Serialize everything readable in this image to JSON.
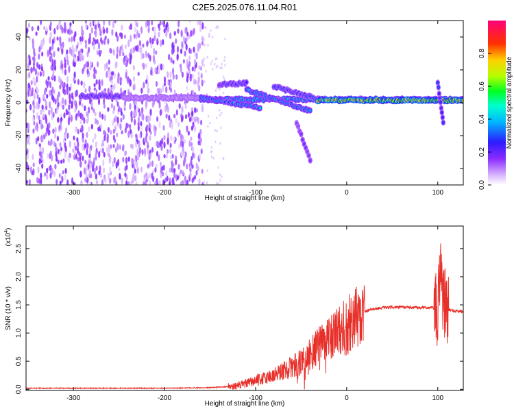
{
  "title": "C2E5.2025.076.11.04.R01",
  "colors": {
    "series": "#e8302a",
    "frame": "#000000",
    "colormap": [
      "#ffffff",
      "#a060ff",
      "#5a00e0",
      "#2d1bff",
      "#00c8ff",
      "#00ff60",
      "#c8ff00",
      "#ffb000",
      "#ff2000",
      "#ff007a"
    ]
  },
  "chart_data": [
    {
      "type": "heatmap",
      "title": "C2E5.2025.076.11.04.R01",
      "xlabel": "Height of straight line (km)",
      "ylabel": "Frequency (Hz)",
      "xlim": [
        -352,
        128
      ],
      "ylim": [
        -50,
        50
      ],
      "x_ticks": [
        -300,
        -200,
        -100,
        0,
        100
      ],
      "x_tick_labels": [
        "-300",
        "-200",
        "-100",
        "0",
        "100"
      ],
      "y_ticks": [
        -40,
        -20,
        0,
        20,
        40
      ],
      "y_tick_labels": [
        "-40",
        "-20",
        "0",
        "20",
        "40"
      ],
      "colorbar": {
        "label": "Normalized spectral amplitude",
        "range": [
          0,
          1
        ],
        "ticks": [
          0.0,
          0.2,
          0.4,
          0.6,
          0.8
        ],
        "tick_labels": [
          "0.0",
          "0.2",
          "0.4",
          "0.6",
          "0.8"
        ]
      },
      "features": [
        {
          "kind": "noise",
          "x": [
            -352,
            -158
          ],
          "y": [
            -50,
            50
          ],
          "amplitude": 0.15
        },
        {
          "kind": "line",
          "x": [
            -292,
            -245
          ],
          "y": [
            4,
            4
          ],
          "amplitude": 0.3
        },
        {
          "kind": "line",
          "x": [
            -245,
            -160
          ],
          "y": [
            3,
            3
          ],
          "amplitude": 0.12
        },
        {
          "kind": "line",
          "x": [
            -160,
            128
          ],
          "y": [
            2,
            2
          ],
          "amplitude": 0.5
        },
        {
          "kind": "line",
          "x": [
            -160,
            -95
          ],
          "y": [
            3,
            -3
          ],
          "amplitude": 0.45
        },
        {
          "kind": "line",
          "x": [
            -140,
            -110
          ],
          "y": [
            11,
            12
          ],
          "amplitude": 0.3
        },
        {
          "kind": "line",
          "x": [
            -110,
            -40
          ],
          "y": [
            8,
            -5
          ],
          "amplitude": 0.45
        },
        {
          "kind": "line",
          "x": [
            -80,
            -30
          ],
          "y": [
            10,
            2
          ],
          "amplitude": 0.35
        },
        {
          "kind": "line",
          "x": [
            -55,
            -40
          ],
          "y": [
            -12,
            -35
          ],
          "amplitude": 0.2
        },
        {
          "kind": "line",
          "x": [
            -32,
            128
          ],
          "y": [
            1.5,
            1.5
          ],
          "amplitude": 0.9
        },
        {
          "kind": "line",
          "x": [
            100,
            106
          ],
          "y": [
            12,
            -12
          ],
          "amplitude": 0.3
        }
      ]
    },
    {
      "type": "line",
      "xlabel": "Height of straight line (km)",
      "ylabel": "SNR (10 * v/v)",
      "y_multiplier_label": "(x10",
      "y_multiplier_exp": "4",
      "y_multiplier_close": ")",
      "xlim": [
        -352,
        128
      ],
      "ylim": [
        -0.02,
        2.9
      ],
      "x_ticks": [
        -300,
        -200,
        -100,
        0,
        100
      ],
      "x_tick_labels": [
        "-300",
        "-200",
        "-100",
        "0",
        "100"
      ],
      "y_ticks": [
        0.0,
        0.5,
        1.0,
        1.5,
        2.0,
        2.5
      ],
      "y_tick_labels": [
        "0.0",
        "0.5",
        "1.0",
        "1.5",
        "2.0",
        "2.5"
      ],
      "series": [
        {
          "values_key_points": {
            "x": [
              -352,
              -200,
              -150,
              -120,
              -100,
              -80,
              -60,
              -45,
              -35,
              -25,
              -20,
              -15,
              -10,
              0,
              10,
              25,
              40,
              60,
              80,
              95,
              100,
              103,
              105,
              107,
              110,
              115,
              128
            ],
            "y": [
              0.02,
              0.02,
              0.03,
              0.06,
              0.15,
              0.25,
              0.4,
              0.55,
              0.7,
              0.85,
              0.9,
              0.95,
              1.0,
              1.15,
              1.28,
              1.42,
              1.45,
              1.46,
              1.45,
              1.45,
              1.3,
              2.4,
              1.8,
              1.5,
              1.42,
              1.4,
              1.38
            ]
          }
        }
      ]
    }
  ]
}
